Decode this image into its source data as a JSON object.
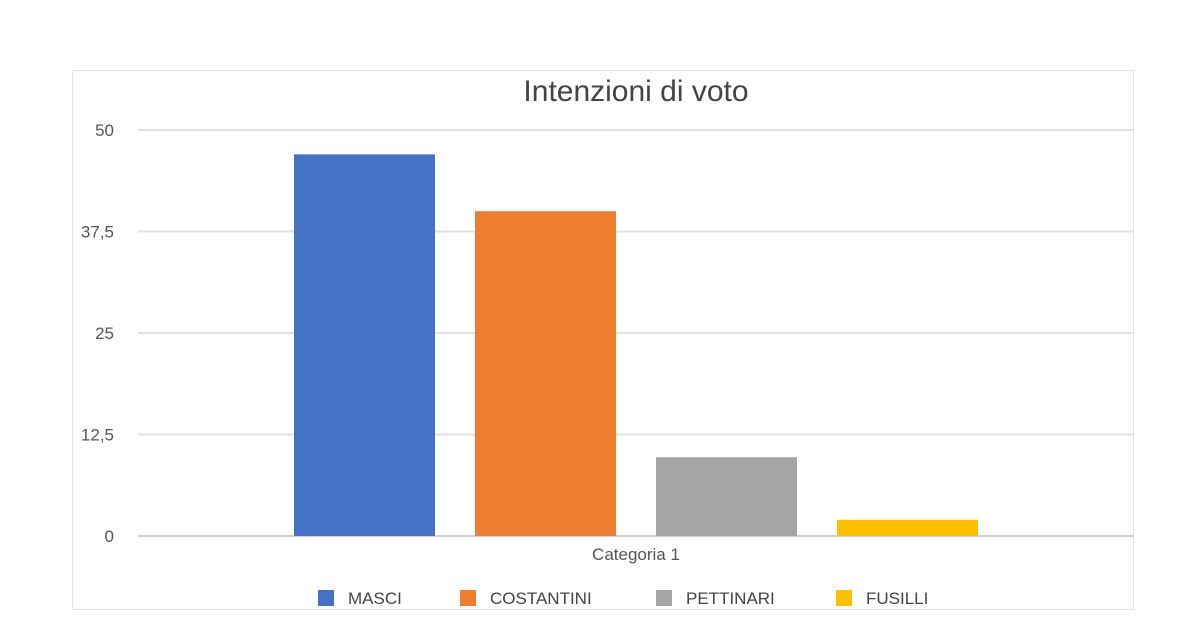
{
  "chart_data": {
    "type": "bar",
    "title": "Intenzioni di voto",
    "categories": [
      "Categoria 1"
    ],
    "series": [
      {
        "name": "MASCI",
        "values": [
          47
        ],
        "color": "#4472C4"
      },
      {
        "name": "COSTANTINI",
        "values": [
          40
        ],
        "color": "#ED7D31"
      },
      {
        "name": "PETTINARI",
        "values": [
          9.7
        ],
        "color": "#A5A5A5"
      },
      {
        "name": "FUSILLI",
        "values": [
          2
        ],
        "color": "#FFC000"
      }
    ],
    "yticks": [
      "0",
      "12,5",
      "25",
      "37,5",
      "50"
    ],
    "ylim": [
      0,
      50
    ],
    "grid": true,
    "legend": "bottom",
    "xlabel": "",
    "ylabel": ""
  }
}
